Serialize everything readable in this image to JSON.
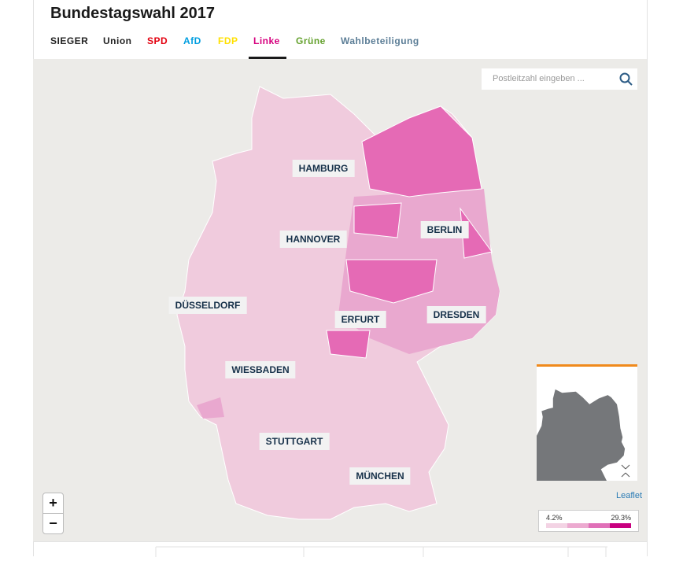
{
  "header": {
    "title": "Bundestagswahl 2017"
  },
  "tabs": [
    {
      "label": "SIEGER",
      "color": "#222222"
    },
    {
      "label": "Union",
      "color": "#222222"
    },
    {
      "label": "SPD",
      "color": "#e3000f"
    },
    {
      "label": "AfD",
      "color": "#009ee0"
    },
    {
      "label": "FDP",
      "color": "#ffe000"
    },
    {
      "label": "Linke",
      "color": "#d6007e"
    },
    {
      "label": "Grüne",
      "color": "#64a12d"
    },
    {
      "label": "Wahlbeteiligung",
      "color": "#5b7d96"
    }
  ],
  "search": {
    "placeholder": "Postleitzahl eingeben ..."
  },
  "map": {
    "cities": [
      "HAMBURG",
      "BERLIN",
      "HANNOVER",
      "DÜSSELDORF",
      "ERFURT",
      "DRESDEN",
      "WIESBADEN",
      "STUTTGART",
      "MÜNCHEN"
    ],
    "zoom": {
      "in": "+",
      "out": "−"
    },
    "attribution": "Leaflet"
  },
  "legend": {
    "min": "4.2%",
    "max": "29.3%"
  }
}
